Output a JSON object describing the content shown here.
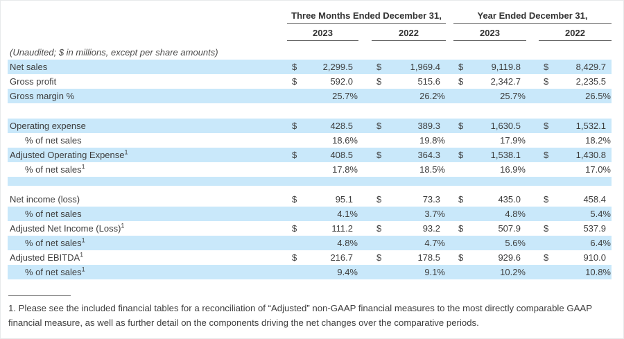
{
  "colors": {
    "row_shade": "#c9e8fa",
    "rule": "#666666",
    "text": "#3d3d3d"
  },
  "currency_symbol": "$",
  "header": {
    "group1": "Three Months Ended December 31,",
    "group2": "Year Ended December 31,",
    "years": [
      "2023",
      "2022",
      "2023",
      "2022"
    ]
  },
  "note": "(Unaudited; $ in millions, except per share amounts)",
  "rows": [
    {
      "label": "Net sales",
      "shaded": true,
      "dollar": true,
      "values": [
        "2,299.5",
        "1,969.4",
        "9,119.8",
        "8,429.7"
      ]
    },
    {
      "label": "Gross profit",
      "shaded": false,
      "dollar": true,
      "values": [
        "592.0",
        "515.6",
        "2,342.7",
        "2,235.5"
      ]
    },
    {
      "label": "Gross margin %",
      "shaded": true,
      "dollar": false,
      "values": [
        "25.7%",
        "26.2%",
        "25.7%",
        "26.5%"
      ]
    },
    {
      "type": "spacer",
      "shaded": false
    },
    {
      "label": "Operating expense",
      "shaded": true,
      "dollar": true,
      "values": [
        "428.5",
        "389.3",
        "1,630.5",
        "1,532.1"
      ]
    },
    {
      "label": "% of net sales",
      "indent": true,
      "shaded": false,
      "dollar": false,
      "values": [
        "18.6%",
        "19.8%",
        "17.9%",
        "18.2%"
      ]
    },
    {
      "label": "Adjusted Operating Expense",
      "sup": "1",
      "shaded": true,
      "dollar": true,
      "values": [
        "408.5",
        "364.3",
        "1,538.1",
        "1,430.8"
      ]
    },
    {
      "label": "% of net sales",
      "sup": "1",
      "indent": true,
      "shaded": false,
      "dollar": false,
      "values": [
        "17.8%",
        "18.5%",
        "16.9%",
        "17.0%"
      ]
    },
    {
      "type": "spacer",
      "shaded": true,
      "half": true
    },
    {
      "label": "Net income (loss)",
      "shaded": false,
      "dollar": true,
      "values": [
        "95.1",
        "73.3",
        "435.0",
        "458.4"
      ]
    },
    {
      "label": "% of net sales",
      "indent": true,
      "shaded": true,
      "dollar": false,
      "values": [
        "4.1%",
        "3.7%",
        "4.8%",
        "5.4%"
      ]
    },
    {
      "label": "Adjusted Net Income (Loss)",
      "sup": "1",
      "shaded": false,
      "dollar": true,
      "values": [
        "111.2",
        "93.2",
        "507.9",
        "537.9"
      ]
    },
    {
      "label": "% of net sales",
      "sup": "1",
      "indent": true,
      "shaded": true,
      "dollar": false,
      "values": [
        "4.8%",
        "4.7%",
        "5.6%",
        "6.4%"
      ]
    },
    {
      "label": "Adjusted EBITDA",
      "sup": "1",
      "shaded": false,
      "dollar": true,
      "values": [
        "216.7",
        "178.5",
        "929.6",
        "910.0"
      ]
    },
    {
      "label": "% of net sales",
      "sup": "1",
      "indent": true,
      "shaded": true,
      "dollar": false,
      "values": [
        "9.4%",
        "9.1%",
        "10.2%",
        "10.8%"
      ]
    }
  ],
  "footnote": {
    "text": "1. Please see the included financial tables for a reconciliation of “Adjusted” non-GAAP financial measures to the most directly comparable GAAP financial measure, as well as further detail on the components driving the net changes over the comparative periods."
  }
}
